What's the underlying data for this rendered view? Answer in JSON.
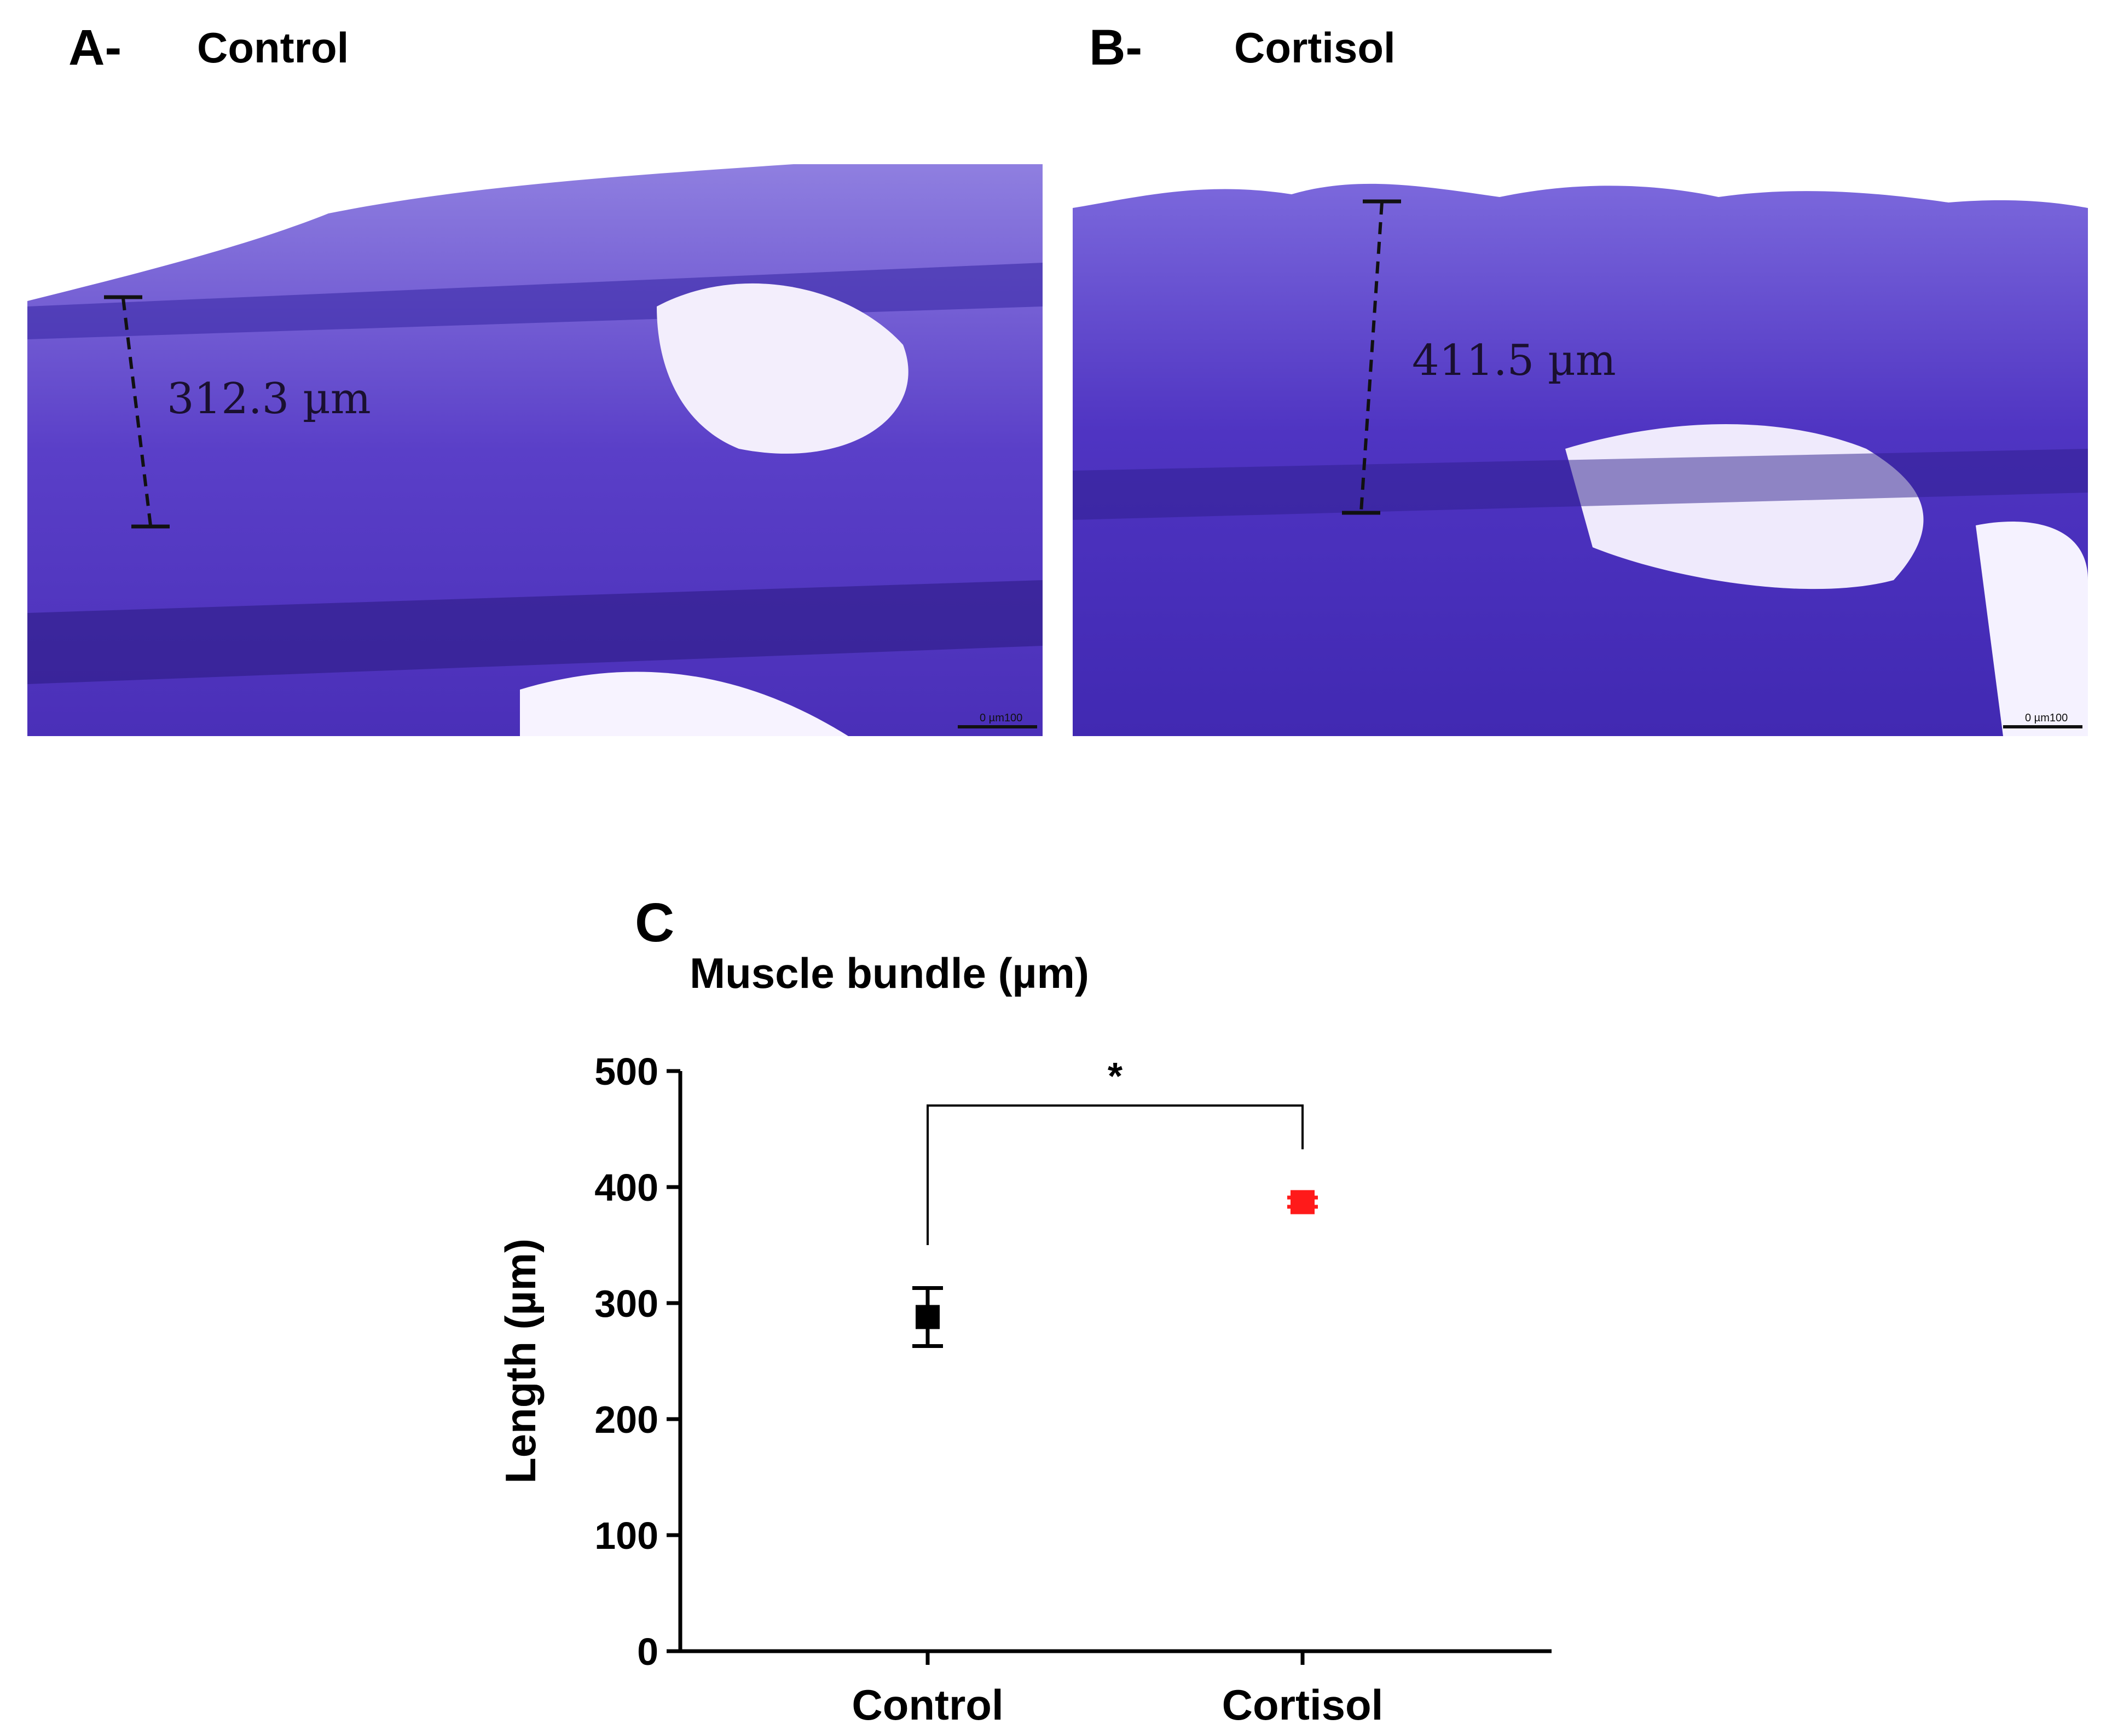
{
  "panels": {
    "a": {
      "letter": "A-",
      "name": "Control",
      "measurement": "312.3 µm",
      "scale_bar": "0   µm100"
    },
    "b": {
      "letter": "B-",
      "name": "Cortisol",
      "measurement": "411.5 µm",
      "scale_bar": "0   µm100"
    },
    "c": {
      "letter": "C"
    }
  },
  "colors": {
    "stain_dark": "#3b2fb0",
    "stain_mid": "#6a4fd6",
    "stain_light": "#9a86e6",
    "control_marker": "#000000",
    "cortisol_marker": "#ff1a1a"
  },
  "chart_data": {
    "type": "scatter",
    "title": "Muscle bundle (µm)",
    "ylabel": "Length (µm)",
    "xlabel": "",
    "categories": [
      "Control",
      "Cortisol"
    ],
    "values": [
      288,
      387
    ],
    "error": [
      25,
      4
    ],
    "marker_colors": [
      "#000000",
      "#ff1a1a"
    ],
    "ylim": [
      0,
      500
    ],
    "yticks": [
      "0",
      "100",
      "200",
      "300",
      "400",
      "500"
    ],
    "ytick_values": [
      0,
      100,
      200,
      300,
      400,
      500
    ],
    "grid": false,
    "significance": {
      "label": "*",
      "between": [
        "Control",
        "Cortisol"
      ]
    }
  }
}
